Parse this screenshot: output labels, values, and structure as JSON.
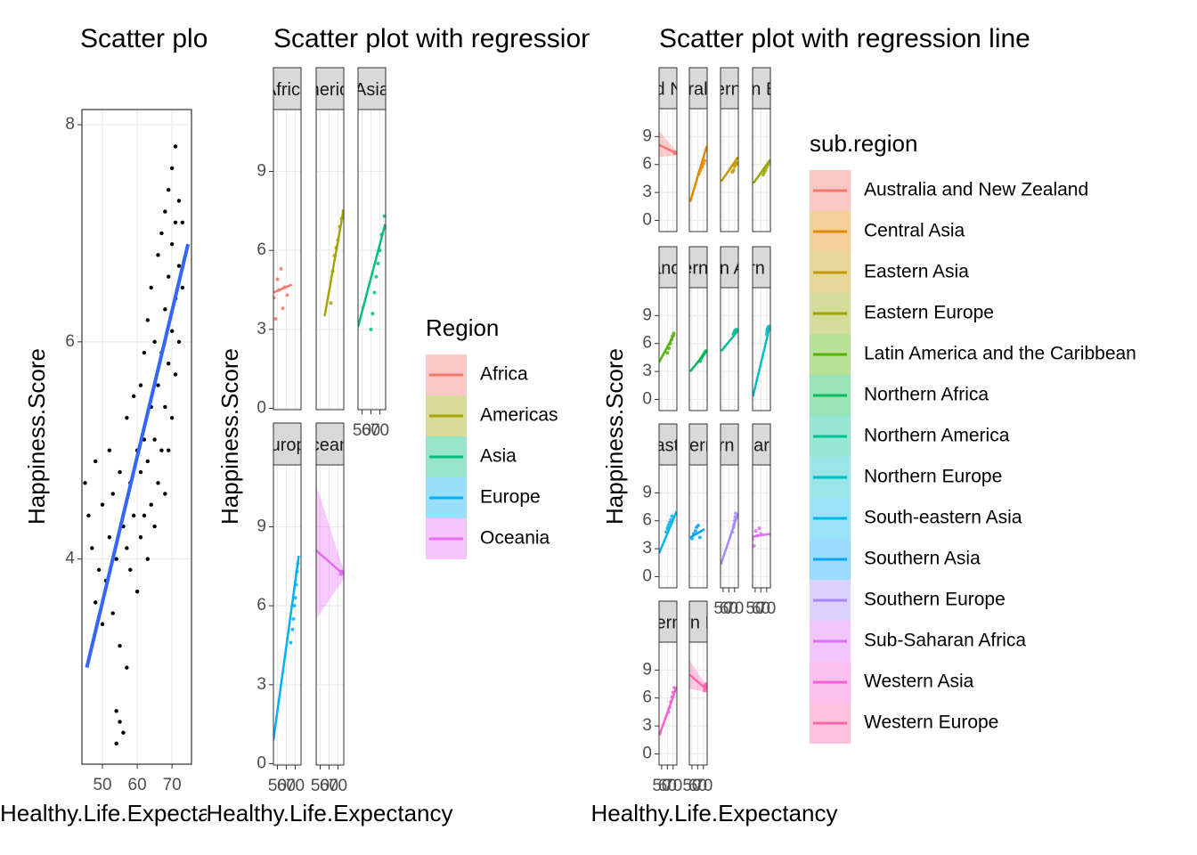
{
  "chart_data": [
    {
      "type": "scatter",
      "title": "Scatter plot with regression line",
      "x_label": "Healthy.Life.Expectancy",
      "y_label": "Happiness.Score",
      "x": [
        45,
        46,
        47,
        48,
        48,
        49,
        50,
        50,
        51,
        52,
        52,
        53,
        53,
        54,
        54,
        55,
        55,
        56,
        56,
        57,
        57,
        58,
        58,
        59,
        59,
        60,
        60,
        61,
        61,
        61,
        62,
        62,
        62,
        63,
        63,
        63,
        64,
        64,
        64,
        65,
        65,
        65,
        66,
        66,
        66,
        67,
        67,
        67,
        68,
        68,
        68,
        68,
        69,
        69,
        69,
        69,
        70,
        70,
        70,
        70,
        71,
        71,
        71,
        71,
        72,
        72,
        72,
        73,
        73,
        54,
        55,
        57
      ],
      "y": [
        4.7,
        4.4,
        4.1,
        3.6,
        4.9,
        3.9,
        3.4,
        4.5,
        3.8,
        4.2,
        5.0,
        3.5,
        4.6,
        2.6,
        4.0,
        3.2,
        4.8,
        2.4,
        4.3,
        4.1,
        5.3,
        3.9,
        4.7,
        4.4,
        5.5,
        3.7,
        5.0,
        4.2,
        5.6,
        4.8,
        4.4,
        5.9,
        5.1,
        4.0,
        4.9,
        6.2,
        4.5,
        5.4,
        6.5,
        4.3,
        5.1,
        6.0,
        4.7,
        5.6,
        6.8,
        5.0,
        5.9,
        7.0,
        4.6,
        5.4,
        6.3,
        7.2,
        5.0,
        5.8,
        6.6,
        7.4,
        5.3,
        6.1,
        6.9,
        7.6,
        5.7,
        6.4,
        7.1,
        7.8,
        6.0,
        6.7,
        7.3,
        6.5,
        7.1,
        2.3,
        2.5,
        3.0
      ],
      "color": "#000000",
      "fit": {
        "x": [
          45.5,
          74.6
        ],
        "y": [
          3.0,
          6.9
        ],
        "color": "#3366ff"
      },
      "xlim": [
        44.1,
        75.6
      ],
      "ylim": [
        2.11,
        8.14
      ],
      "xticks": [
        50,
        60,
        70
      ],
      "yticks": [
        4,
        6,
        8
      ],
      "grid": true
    },
    {
      "type": "facets",
      "title": "Scatter plot with regression line",
      "x_label": "Healthy.Life.Expectancy",
      "y_label": "Happiness.Score",
      "legend_title": "Region",
      "legend_position": "right",
      "xlim": [
        45.5,
        76.5
      ],
      "ylim": [
        -0.05,
        11.35
      ],
      "xticks": [
        50,
        60,
        70
      ],
      "yticks": [
        0,
        3,
        6,
        9
      ],
      "grid": true,
      "series": [
        {
          "name": "Africa",
          "color": "#F8766D",
          "x": [
            46,
            48,
            50,
            52,
            54,
            56,
            58,
            61
          ],
          "y": [
            4.2,
            3.4,
            4.9,
            4.5,
            5.3,
            3.8,
            4.6,
            4.3
          ],
          "fit": {
            "x": [
              45.5,
              66
            ],
            "y": [
              4.4,
              4.7
            ]
          }
        },
        {
          "name": "Americas",
          "color": "#A3A500",
          "x": [
            62,
            64,
            66,
            68,
            70,
            72,
            74,
            76
          ],
          "y": [
            4.0,
            5.2,
            5.8,
            6.1,
            6.4,
            6.9,
            7.2,
            7.5
          ],
          "fit": {
            "x": [
              55,
              76
            ],
            "y": [
              3.5,
              7.5
            ]
          }
        },
        {
          "name": "Asia",
          "color": "#00BF7D",
          "x": [
            60,
            62,
            64,
            66,
            68,
            70,
            72,
            75
          ],
          "y": [
            3.0,
            3.6,
            4.4,
            5.0,
            5.5,
            6.0,
            6.6,
            7.3
          ],
          "fit": {
            "x": [
              45.5,
              76
            ],
            "y": [
              3.1,
              7.0
            ]
          }
        },
        {
          "name": "Europe",
          "color": "#00B0F6",
          "x": [
            65,
            67,
            68,
            69,
            70,
            71,
            72,
            73
          ],
          "y": [
            4.6,
            5.1,
            5.5,
            6.0,
            6.3,
            6.8,
            7.3,
            7.6
          ],
          "fit": {
            "x": [
              45.5,
              74
            ],
            "y": [
              0.9,
              7.9
            ]
          }
        },
        {
          "name": "Oceania",
          "color": "#E76BF3",
          "x": [
            73,
            73.5,
            74,
            74.5
          ],
          "y": [
            7.2,
            7.3,
            7.3,
            7.3
          ],
          "fit": {
            "x": [
              45.5,
              76
            ],
            "y": [
              8.1,
              7.2
            ],
            "lower": [
              5.5,
              7.0
            ],
            "upper": [
              10.6,
              7.4
            ]
          }
        }
      ]
    },
    {
      "type": "facets",
      "title": "Scatter plot with regression line",
      "x_label": "Healthy.Life.Expectancy",
      "y_label": "Happiness.Score",
      "legend_title": "sub.region",
      "legend_position": "right",
      "xlim": [
        45.5,
        76.5
      ],
      "ylim": [
        -1.2,
        12.0
      ],
      "xticks": [
        50,
        60,
        70
      ],
      "yticks": [
        0,
        3,
        6,
        9
      ],
      "grid": true,
      "series": [
        {
          "name": "Australia and New Zealand",
          "color": "#F8766D",
          "x": [
            73,
            73,
            74,
            74
          ],
          "y": [
            7.3,
            7.2,
            7.3,
            7.3
          ],
          "fit": {
            "x": [
              45.5,
              76
            ],
            "y": [
              8.1,
              7.2
            ],
            "lower": [
              6.8,
              7.0
            ],
            "upper": [
              9.6,
              7.4
            ]
          }
        },
        {
          "name": "Central Asia",
          "color": "#E38900",
          "x": [
            62,
            64,
            66,
            68,
            70,
            72
          ],
          "y": [
            5.0,
            5.3,
            5.6,
            5.8,
            6.1,
            6.4
          ],
          "fit": {
            "x": [
              47,
              76
            ],
            "y": [
              2.0,
              8.0
            ]
          }
        },
        {
          "name": "Eastern Asia",
          "color": "#C49A00",
          "x": [
            66,
            68,
            70,
            72,
            74,
            76
          ],
          "y": [
            5.2,
            5.4,
            5.8,
            6.0,
            6.2,
            6.1
          ],
          "fit": {
            "x": [
              47,
              76
            ],
            "y": [
              4.2,
              6.8
            ]
          }
        },
        {
          "name": "Eastern Europe",
          "color": "#99A800",
          "x": [
            64,
            66,
            68,
            70,
            72,
            74
          ],
          "y": [
            4.9,
            5.2,
            5.4,
            5.7,
            6.0,
            6.2
          ],
          "fit": {
            "x": [
              47,
              76
            ],
            "y": [
              4.0,
              6.5
            ]
          }
        },
        {
          "name": "Latin America and the Caribbean",
          "color": "#53B400",
          "x": [
            60,
            63,
            65,
            67,
            69,
            71
          ],
          "y": [
            5.0,
            5.5,
            6.0,
            6.4,
            6.8,
            7.1
          ],
          "fit": {
            "x": [
              45.5,
              72
            ],
            "y": [
              4.0,
              7.0
            ]
          }
        },
        {
          "name": "Northern Africa",
          "color": "#00BC56",
          "x": [
            64,
            66,
            68,
            70,
            72,
            74
          ],
          "y": [
            4.1,
            4.4,
            4.6,
            4.8,
            5.0,
            5.2
          ],
          "fit": {
            "x": [
              47,
              76
            ],
            "y": [
              3.0,
              5.2
            ]
          }
        },
        {
          "name": "Northern America",
          "color": "#00C094",
          "x": [
            68,
            69,
            70,
            71,
            72,
            73
          ],
          "y": [
            7.0,
            7.1,
            7.3,
            7.4,
            7.2,
            7.5
          ],
          "fit": {
            "x": [
              47,
              76
            ],
            "y": [
              5.2,
              7.4
            ]
          }
        },
        {
          "name": "Northern Europe",
          "color": "#00BFC4",
          "x": [
            70,
            71,
            71,
            72,
            72,
            73
          ],
          "y": [
            7.0,
            7.3,
            7.5,
            7.4,
            7.6,
            7.8
          ],
          "fit": {
            "x": [
              46,
              76
            ],
            "y": [
              0.3,
              8.0
            ]
          }
        },
        {
          "name": "South-eastern Asia",
          "color": "#00B6EB",
          "x": [
            58,
            60,
            62,
            64,
            66,
            68
          ],
          "y": [
            4.8,
            5.2,
            5.5,
            5.8,
            6.1,
            6.5
          ],
          "fit": {
            "x": [
              45.5,
              76
            ],
            "y": [
              2.5,
              7.0
            ]
          }
        },
        {
          "name": "Southern Asia",
          "color": "#06A4FF",
          "x": [
            50,
            53,
            56,
            58,
            61,
            64
          ],
          "y": [
            4.1,
            4.6,
            4.9,
            5.3,
            5.5,
            4.2
          ],
          "fit": {
            "x": [
              47,
              72
            ],
            "y": [
              4.2,
              5.1
            ]
          }
        },
        {
          "name": "Southern Europe",
          "color": "#A58AFF",
          "x": [
            66,
            68,
            69,
            70,
            71,
            72
          ],
          "y": [
            4.8,
            5.3,
            5.6,
            6.0,
            6.4,
            6.8
          ],
          "fit": {
            "x": [
              46,
              76
            ],
            "y": [
              1.3,
              6.8
            ]
          }
        },
        {
          "name": "Sub-Saharan Africa",
          "color": "#DF70F8",
          "x": [
            45,
            48,
            51,
            54,
            57,
            60
          ],
          "y": [
            4.0,
            3.3,
            4.9,
            4.4,
            5.2,
            4.6
          ],
          "fit": {
            "x": [
              46,
              76
            ],
            "y": [
              4.3,
              4.6
            ]
          }
        },
        {
          "name": "Western Asia",
          "color": "#FB61D7",
          "x": [
            62,
            64,
            66,
            68,
            70,
            72
          ],
          "y": [
            4.5,
            5.0,
            5.6,
            6.1,
            6.6,
            7.1
          ],
          "fit": {
            "x": [
              46,
              76
            ],
            "y": [
              2.0,
              7.2
            ]
          }
        },
        {
          "name": "Western Europe",
          "color": "#FF66A8",
          "x": [
            72,
            73,
            73,
            74,
            74,
            75
          ],
          "y": [
            6.8,
            7.0,
            7.3,
            7.2,
            7.4,
            7.5
          ],
          "fit": {
            "x": [
              46,
              76
            ],
            "y": [
              8.5,
              6.9
            ],
            "lower": [
              7.0,
              6.6
            ],
            "upper": [
              10.0,
              7.3
            ]
          }
        }
      ]
    }
  ]
}
